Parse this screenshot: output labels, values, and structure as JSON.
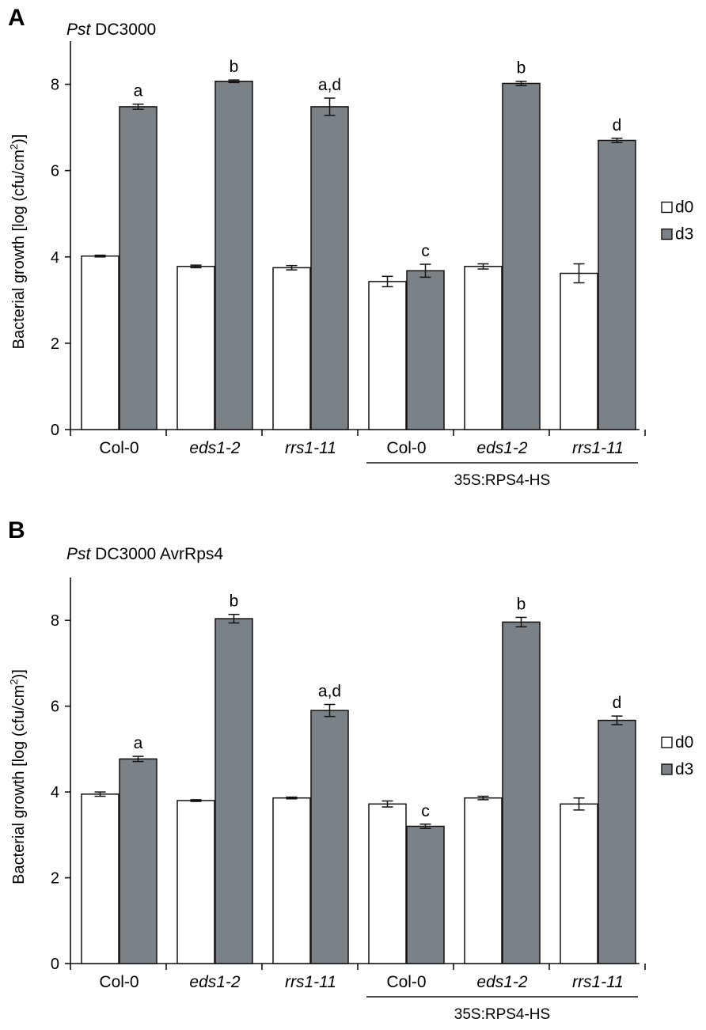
{
  "chart_data": [
    {
      "type": "bar",
      "panel": "A",
      "title": {
        "italic": "Pst",
        "rest": " DC3000"
      },
      "ylabel": "Bacterial growth [log (cfu/cm²)]",
      "ylabel_parts": {
        "before": "Bacterial growth [log (cfu/cm",
        "sup": "2",
        "after": ")]"
      },
      "xlabel": "",
      "ylim": [
        0,
        9
      ],
      "yticks": [
        0,
        2,
        4,
        6,
        8
      ],
      "categories": [
        "Col-0",
        "eds1-2",
        "rrs1-11",
        "Col-0",
        "eds1-2",
        "rrs1-11"
      ],
      "category_italic": [
        false,
        true,
        true,
        false,
        true,
        true
      ],
      "series": [
        {
          "name": "d0",
          "color": "#ffffff",
          "values": [
            4.02,
            3.78,
            3.75,
            3.43,
            3.78,
            3.62
          ],
          "errors": [
            0.02,
            0.03,
            0.05,
            0.12,
            0.06,
            0.22
          ]
        },
        {
          "name": "d3",
          "color": "#7a8288",
          "values": [
            7.48,
            8.07,
            7.48,
            3.68,
            8.02,
            6.7
          ],
          "errors": [
            0.06,
            0.03,
            0.2,
            0.15,
            0.05,
            0.05
          ]
        }
      ],
      "significance": [
        "a",
        "b",
        "a,d",
        "c",
        "b",
        "d"
      ],
      "group_label": "35S:RPS4-HS",
      "legend_position": "right"
    },
    {
      "type": "bar",
      "panel": "B",
      "title": {
        "italic": "Pst",
        "rest": " DC3000 AvrRps4"
      },
      "ylabel": "Bacterial growth [log (cfu/cm²)]",
      "ylabel_parts": {
        "before": "Bacterial growth [log (cfu/cm",
        "sup": "2",
        "after": ")]"
      },
      "xlabel": "",
      "ylim": [
        0,
        9
      ],
      "yticks": [
        0,
        2,
        4,
        6,
        8
      ],
      "categories": [
        "Col-0",
        "eds1-2",
        "rrs1-11",
        "Col-0",
        "eds1-2",
        "rrs1-11"
      ],
      "category_italic": [
        false,
        true,
        true,
        false,
        true,
        true
      ],
      "series": [
        {
          "name": "d0",
          "color": "#ffffff",
          "values": [
            3.95,
            3.8,
            3.86,
            3.72,
            3.86,
            3.72
          ],
          "errors": [
            0.05,
            0.02,
            0.02,
            0.07,
            0.04,
            0.14
          ]
        },
        {
          "name": "d3",
          "color": "#7a8288",
          "values": [
            4.77,
            8.04,
            5.9,
            3.2,
            7.96,
            5.67
          ],
          "errors": [
            0.06,
            0.1,
            0.14,
            0.05,
            0.11,
            0.1
          ]
        }
      ],
      "significance": [
        "a",
        "b",
        "a,d",
        "c",
        "b",
        "d"
      ],
      "group_label": "35S:RPS4-HS",
      "legend_position": "right"
    }
  ]
}
